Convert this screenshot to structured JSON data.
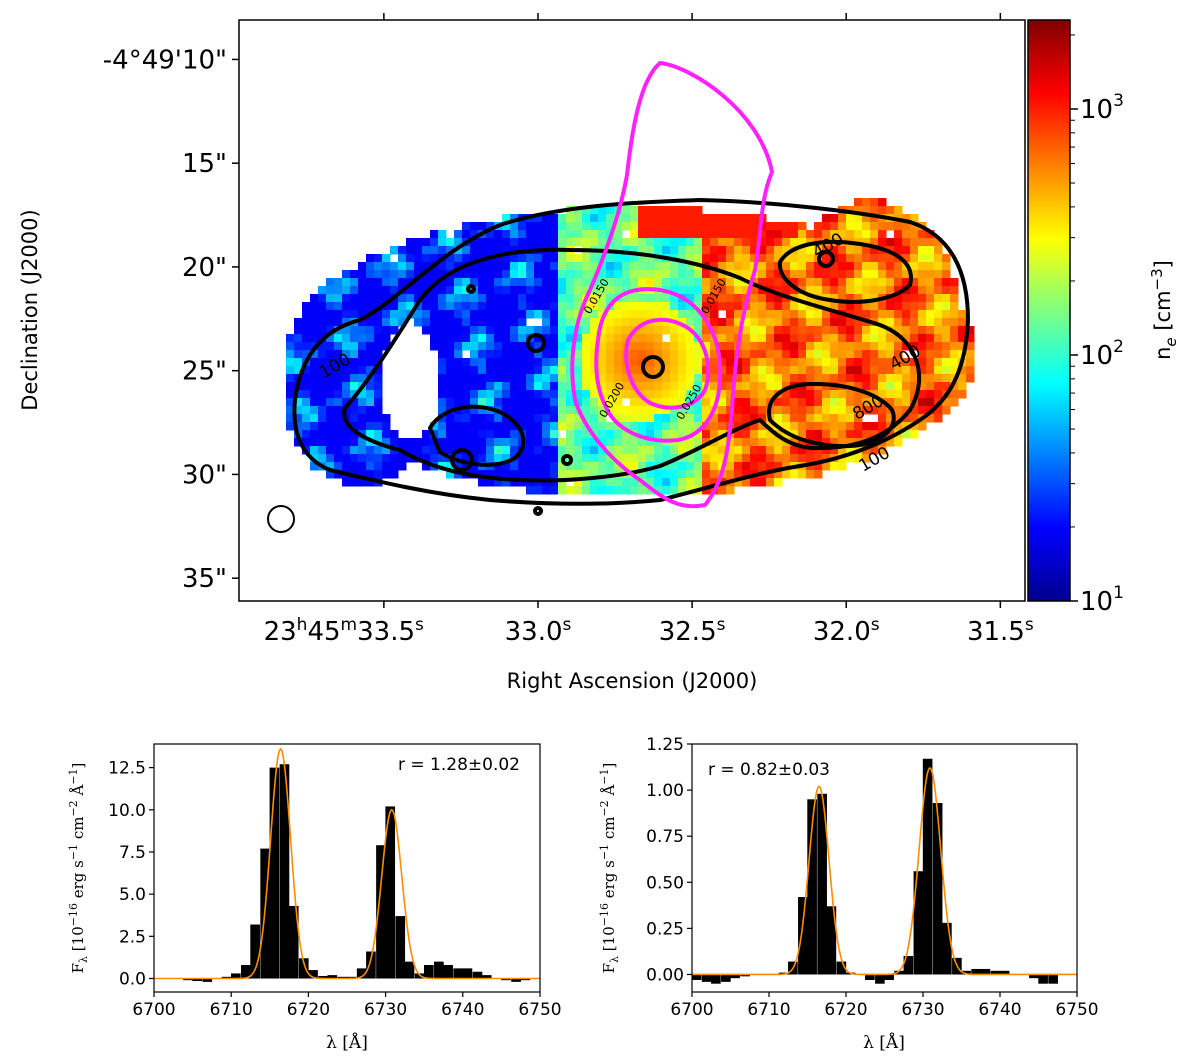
{
  "chart_data": [
    {
      "type": "heatmap",
      "panel": "electron-density-map",
      "xlabel": "Right Ascension (J2000)",
      "ylabel": "Declination (J2000)",
      "x_ticks": [
        {
          "value": 33.5,
          "label": "23h45m33.5s",
          "parts": {
            "h": "23",
            "m": "45",
            "s": "33.5"
          }
        },
        {
          "value": 33.0,
          "label": "33.0s"
        },
        {
          "value": 32.5,
          "label": "32.5s"
        },
        {
          "value": 32.0,
          "label": "32.0s"
        },
        {
          "value": 31.5,
          "label": "31.5s"
        }
      ],
      "y_ticks": [
        {
          "value": 10,
          "label": "-4°49'10\""
        },
        {
          "value": 15,
          "label": "15\""
        },
        {
          "value": 20,
          "label": "20\""
        },
        {
          "value": 25,
          "label": "25\""
        },
        {
          "value": 30,
          "label": "30\""
        },
        {
          "value": 35,
          "label": "35\""
        }
      ],
      "xlim": [
        33.97,
        31.42
      ],
      "ylim": [
        36.1,
        8.1
      ],
      "colorbar": {
        "label": "n",
        "label_sub": "e",
        "label_unit": "[cm",
        "label_unit_sup": "−3",
        "label_close": "]",
        "scale": "log",
        "range": [
          10,
          2300
        ],
        "ticks": [
          {
            "value": 10,
            "base": "10",
            "exp": "1"
          },
          {
            "value": 100,
            "base": "10",
            "exp": "2"
          },
          {
            "value": 1000,
            "base": "10",
            "exp": "3"
          }
        ],
        "colormap": "jet"
      },
      "contour_labels": [
        {
          "text": "100",
          "ra": 33.65,
          "dec": 25.0,
          "color": "#888888"
        },
        {
          "text": "100",
          "ra": 31.9,
          "dec": 29.5,
          "color": "#888888"
        },
        {
          "text": "400",
          "ra": 32.05,
          "dec": 19.2,
          "color": "#888888"
        },
        {
          "text": "400",
          "ra": 31.8,
          "dec": 24.6,
          "color": "#888888"
        },
        {
          "text": "800",
          "ra": 31.92,
          "dec": 27.0,
          "color": "#888888"
        },
        {
          "text": "0.0150",
          "ra": 32.8,
          "dec": 21.5,
          "color": "#e6007e"
        },
        {
          "text": "0.0150",
          "ra": 32.42,
          "dec": 21.5,
          "color": "#e6007e"
        },
        {
          "text": "0.0200",
          "ra": 32.75,
          "dec": 26.5,
          "color": "#e6007e"
        },
        {
          "text": "0.0250",
          "ra": 32.5,
          "dec": 26.6,
          "color": "#e6007e"
        }
      ],
      "beam": {
        "ra": 33.82,
        "dec": 32.2
      },
      "colors": {
        "black_contours": "#000000",
        "magenta_contours": "#ff22ff"
      }
    },
    {
      "type": "bar",
      "panel": "spectrum-left",
      "xlabel": "λ [Å]",
      "ylabel": "F_λ [10^-16 erg s^-1 cm^-2 Å^-1]",
      "xlim": [
        6700,
        6750
      ],
      "ylim": [
        -0.8,
        13.9
      ],
      "x_ticks": [
        6700,
        6710,
        6720,
        6730,
        6740,
        6750
      ],
      "y_ticks": [
        {
          "value": 0.0,
          "label": "0.0"
        },
        {
          "value": 2.5,
          "label": "2.5"
        },
        {
          "value": 5.0,
          "label": "5.0"
        },
        {
          "value": 7.5,
          "label": "7.5"
        },
        {
          "value": 10.0,
          "label": "10.0"
        },
        {
          "value": 12.5,
          "label": "12.5"
        }
      ],
      "annotation": "r = 1.28±0.02",
      "step_width": 1.25,
      "x": [
        6700.6,
        6701.9,
        6703.1,
        6704.4,
        6705.6,
        6706.9,
        6708.1,
        6709.4,
        6710.6,
        6711.9,
        6713.1,
        6714.4,
        6715.6,
        6716.9,
        6718.1,
        6719.4,
        6720.6,
        6721.9,
        6723.1,
        6724.4,
        6725.6,
        6726.9,
        6728.1,
        6729.4,
        6730.6,
        6731.9,
        6733.1,
        6734.4,
        6735.6,
        6736.9,
        6738.1,
        6739.4,
        6740.6,
        6741.9,
        6743.1,
        6744.4,
        6745.6,
        6746.9,
        6748.1,
        6749.4
      ],
      "values": [
        0.0,
        0.0,
        0.0,
        -0.1,
        -0.15,
        -0.2,
        0.0,
        0.1,
        0.3,
        0.8,
        3.2,
        7.7,
        12.5,
        12.7,
        4.3,
        1.2,
        0.5,
        0.15,
        0.2,
        0.1,
        0.1,
        0.6,
        1.6,
        7.9,
        10.2,
        3.7,
        1.0,
        0.3,
        0.8,
        1.0,
        0.8,
        0.6,
        0.6,
        0.4,
        0.2,
        0.0,
        -0.1,
        -0.2,
        -0.1,
        0.0
      ],
      "fit": {
        "centers": [
          6716.4,
          6730.8
        ],
        "amplitudes": [
          13.6,
          10.0
        ],
        "sigmas": [
          1.3,
          1.3
        ],
        "color": "#ff8c00"
      }
    },
    {
      "type": "bar",
      "panel": "spectrum-right",
      "xlabel": "λ [Å]",
      "ylabel": "F_λ [10^-16 erg s^-1 cm^-2 Å^-1]",
      "xlim": [
        6700,
        6750
      ],
      "ylim": [
        -0.095,
        1.25
      ],
      "x_ticks": [
        6700,
        6710,
        6720,
        6730,
        6740,
        6750
      ],
      "y_ticks": [
        {
          "value": 0.0,
          "label": "0.00"
        },
        {
          "value": 0.25,
          "label": "0.25"
        },
        {
          "value": 0.5,
          "label": "0.50"
        },
        {
          "value": 0.75,
          "label": "0.75"
        },
        {
          "value": 1.0,
          "label": "1.00"
        },
        {
          "value": 1.25,
          "label": "1.25"
        }
      ],
      "annotation": "r = 0.82±0.03",
      "step_width": 1.25,
      "x": [
        6700.6,
        6701.9,
        6703.1,
        6704.4,
        6705.6,
        6706.9,
        6708.1,
        6709.4,
        6710.6,
        6711.9,
        6713.1,
        6714.4,
        6715.6,
        6716.9,
        6718.1,
        6719.4,
        6720.6,
        6721.9,
        6723.1,
        6724.4,
        6725.6,
        6726.9,
        6728.1,
        6729.4,
        6730.6,
        6731.9,
        6733.1,
        6734.4,
        6735.6,
        6736.9,
        6738.1,
        6739.4,
        6740.6,
        6741.9,
        6743.1,
        6744.4,
        6745.6,
        6746.9,
        6748.1,
        6749.4
      ],
      "values": [
        -0.03,
        -0.04,
        -0.05,
        -0.04,
        -0.02,
        -0.01,
        0.0,
        0.0,
        0.0,
        0.01,
        0.07,
        0.42,
        0.95,
        0.98,
        0.37,
        0.07,
        0.01,
        0.0,
        -0.03,
        -0.05,
        -0.03,
        0.02,
        0.1,
        0.56,
        1.17,
        0.93,
        0.28,
        0.09,
        0.02,
        0.03,
        0.03,
        0.02,
        0.02,
        0.0,
        0.0,
        -0.02,
        -0.05,
        -0.05,
        0.0,
        0.0
      ],
      "fit": {
        "centers": [
          6716.5,
          6730.9
        ],
        "amplitudes": [
          1.02,
          1.12
        ],
        "sigmas": [
          1.3,
          1.4
        ],
        "color": "#ff8c00"
      }
    }
  ]
}
